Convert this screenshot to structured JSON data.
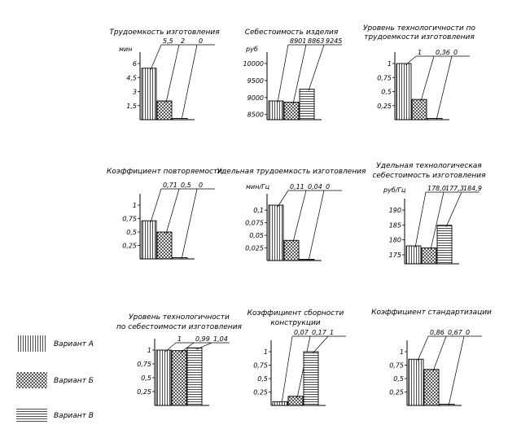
{
  "legend": [
    {
      "pattern": "vertical",
      "label": "Вариант А"
    },
    {
      "pattern": "cross",
      "label": "Вариант Б"
    },
    {
      "pattern": "horizontal",
      "label": "Вариант В"
    }
  ],
  "chart_data": [
    {
      "type": "bar",
      "title": [
        "Трудоемкость изготовления"
      ],
      "ylabel": "мин",
      "ylim": [
        0,
        6
      ],
      "ticks": [
        "6",
        "4,5",
        "3",
        "1,5"
      ],
      "tick_values": [
        6,
        4.5,
        3,
        1.5
      ],
      "values": [
        5.5,
        2,
        0
      ],
      "value_labels": [
        "5,5",
        "2",
        "0"
      ],
      "categories": [
        "Вариант А",
        "Вариант Б",
        "Вариант В"
      ]
    },
    {
      "type": "bar",
      "title": [
        "Себестоимость изделия"
      ],
      "ylabel": "руб",
      "ylim": [
        8350,
        10000
      ],
      "ticks": [
        "10000",
        "9500",
        "9000",
        "8500"
      ],
      "tick_values": [
        10000,
        9500,
        9000,
        8500
      ],
      "values": [
        8901,
        8863,
        9245
      ],
      "value_labels": [
        "8901",
        "8863",
        "9245"
      ],
      "categories": [
        "Вариант А",
        "Вариант Б",
        "Вариант В"
      ]
    },
    {
      "type": "bar",
      "title": [
        "Уровень технологичности по",
        "трудоемкости изготовления"
      ],
      "ylabel": "",
      "ylim": [
        0,
        1
      ],
      "ticks": [
        "1",
        "0,75",
        "0,5",
        "0,25"
      ],
      "tick_values": [
        1,
        0.75,
        0.5,
        0.25
      ],
      "values": [
        1,
        0.36,
        0
      ],
      "value_labels": [
        "1",
        "0,36",
        "0"
      ],
      "categories": [
        "Вариант А",
        "Вариант Б",
        "Вариант В"
      ]
    },
    {
      "type": "bar",
      "title": [
        "Коэффициент повторяемости"
      ],
      "ylabel": "",
      "ylim": [
        0,
        1
      ],
      "ticks": [
        "1",
        "0,75",
        "0,5",
        "0,25"
      ],
      "tick_values": [
        1,
        0.75,
        0.5,
        0.25
      ],
      "values": [
        0.71,
        0.5,
        0
      ],
      "value_labels": [
        "0,71",
        "0,5",
        "0"
      ],
      "categories": [
        "Вариант А",
        "Вариант Б",
        "Вариант В"
      ]
    },
    {
      "type": "bar",
      "title": [
        "Удельная трудоемкость изготовления"
      ],
      "ylabel": "мин/Гц",
      "ylim": [
        0,
        0.11
      ],
      "ticks": [
        "0,1",
        "0,075",
        "0,05",
        "0,025"
      ],
      "tick_values": [
        0.1,
        0.075,
        0.05,
        0.025
      ],
      "values": [
        0.11,
        0.04,
        0
      ],
      "value_labels": [
        "0,11",
        "0,04",
        "0"
      ],
      "categories": [
        "Вариант А",
        "Вариант Б",
        "Вариант В"
      ]
    },
    {
      "type": "bar",
      "title": [
        "Удельная технологическая",
        "себестоимость изготовления"
      ],
      "ylabel": "руб/Гц",
      "ylim": [
        172,
        190
      ],
      "ticks": [
        "190",
        "185",
        "180",
        "175"
      ],
      "tick_values": [
        190,
        185,
        180,
        175
      ],
      "values": [
        178.0,
        177.3,
        184.9
      ],
      "value_labels": [
        "178,0",
        "177,3",
        "184,9"
      ],
      "categories": [
        "Вариант А",
        "Вариант Б",
        "Вариант В"
      ]
    },
    {
      "type": "bar",
      "title": [
        "Уровень технологичности",
        "по себестоимости изготовления"
      ],
      "ylabel": "",
      "ylim": [
        0,
        1
      ],
      "ticks": [
        "1",
        "0,75",
        "0,5",
        "0,25"
      ],
      "tick_values": [
        1,
        0.75,
        0.5,
        0.25
      ],
      "values": [
        1,
        0.99,
        1.04
      ],
      "value_labels": [
        "1",
        "0,99",
        "1,04"
      ],
      "categories": [
        "Вариант А",
        "Вариант Б",
        "Вариант В"
      ]
    },
    {
      "type": "bar",
      "title": [
        "Коэффициент сборности",
        "конструкции"
      ],
      "ylabel": "",
      "ylim": [
        0,
        1
      ],
      "ticks": [
        "1",
        "0,75",
        "0,5",
        "0,25"
      ],
      "tick_values": [
        1,
        0.75,
        0.5,
        0.25
      ],
      "values": [
        0.07,
        0.17,
        1
      ],
      "value_labels": [
        "0,07",
        "0,17",
        "1"
      ],
      "categories": [
        "Вариант А",
        "Вариант Б",
        "Вариант В"
      ]
    },
    {
      "type": "bar",
      "title": [
        "Коэффициент стандартизации"
      ],
      "ylabel": "",
      "ylim": [
        0,
        1
      ],
      "ticks": [
        "1",
        "0,75",
        "0,5",
        "0,25"
      ],
      "tick_values": [
        1,
        0.75,
        0.5,
        0.25
      ],
      "values": [
        0.86,
        0.67,
        0
      ],
      "value_labels": [
        "0,86",
        "0,67",
        "0"
      ],
      "categories": [
        "Вариант А",
        "Вариант Б",
        "Вариант В"
      ]
    }
  ]
}
